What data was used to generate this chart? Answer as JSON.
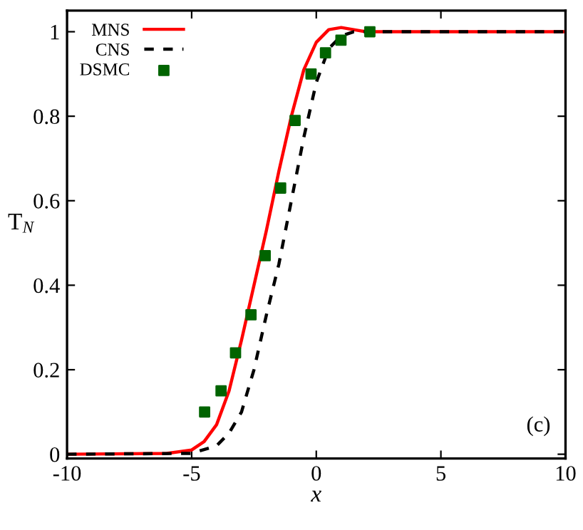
{
  "chart_data": {
    "type": "line",
    "xlabel": "x",
    "ylabel": "T$_{N}$",
    "xlim": [
      -10,
      10
    ],
    "ylim": [
      -0.01,
      1.05
    ],
    "xticks": [
      -10,
      -5,
      0,
      5,
      10
    ],
    "yticks": [
      0,
      0.2,
      0.4,
      0.6,
      0.8,
      1
    ],
    "grid": false,
    "legend": "top left",
    "annotations": [
      "(c)"
    ],
    "series": [
      {
        "name": "MNS",
        "color": "#ff0000",
        "line_style": "solid",
        "x": [
          -10,
          -6,
          -5,
          -4.5,
          -4,
          -3.5,
          -3,
          -2.5,
          -2,
          -1.5,
          -1,
          -0.5,
          0,
          0.5,
          1,
          1.5,
          2,
          10
        ],
        "values": [
          0,
          0.002,
          0.01,
          0.03,
          0.07,
          0.15,
          0.27,
          0.4,
          0.53,
          0.67,
          0.8,
          0.91,
          0.975,
          1.005,
          1.01,
          1.005,
          1.0,
          1.0
        ]
      },
      {
        "name": "CNS",
        "color": "#000000",
        "line_style": "dashed",
        "x": [
          -10,
          -5,
          -4,
          -3.5,
          -3,
          -2.5,
          -2,
          -1.5,
          -1,
          -0.5,
          0,
          0.5,
          1,
          1.5,
          10
        ],
        "values": [
          0,
          0.002,
          0.02,
          0.05,
          0.1,
          0.2,
          0.33,
          0.45,
          0.6,
          0.75,
          0.88,
          0.96,
          0.99,
          1.0,
          1.0
        ]
      },
      {
        "name": "DSMC",
        "type": "scatter",
        "color": "#006400",
        "marker": "square",
        "x": [
          -4.48,
          -3.82,
          -3.24,
          -2.62,
          -2.05,
          -1.43,
          -0.85,
          -0.21,
          0.37,
          0.99,
          2.15
        ],
        "values": [
          0.1,
          0.15,
          0.24,
          0.33,
          0.47,
          0.63,
          0.79,
          0.9,
          0.95,
          0.98,
          1.0
        ]
      }
    ]
  }
}
